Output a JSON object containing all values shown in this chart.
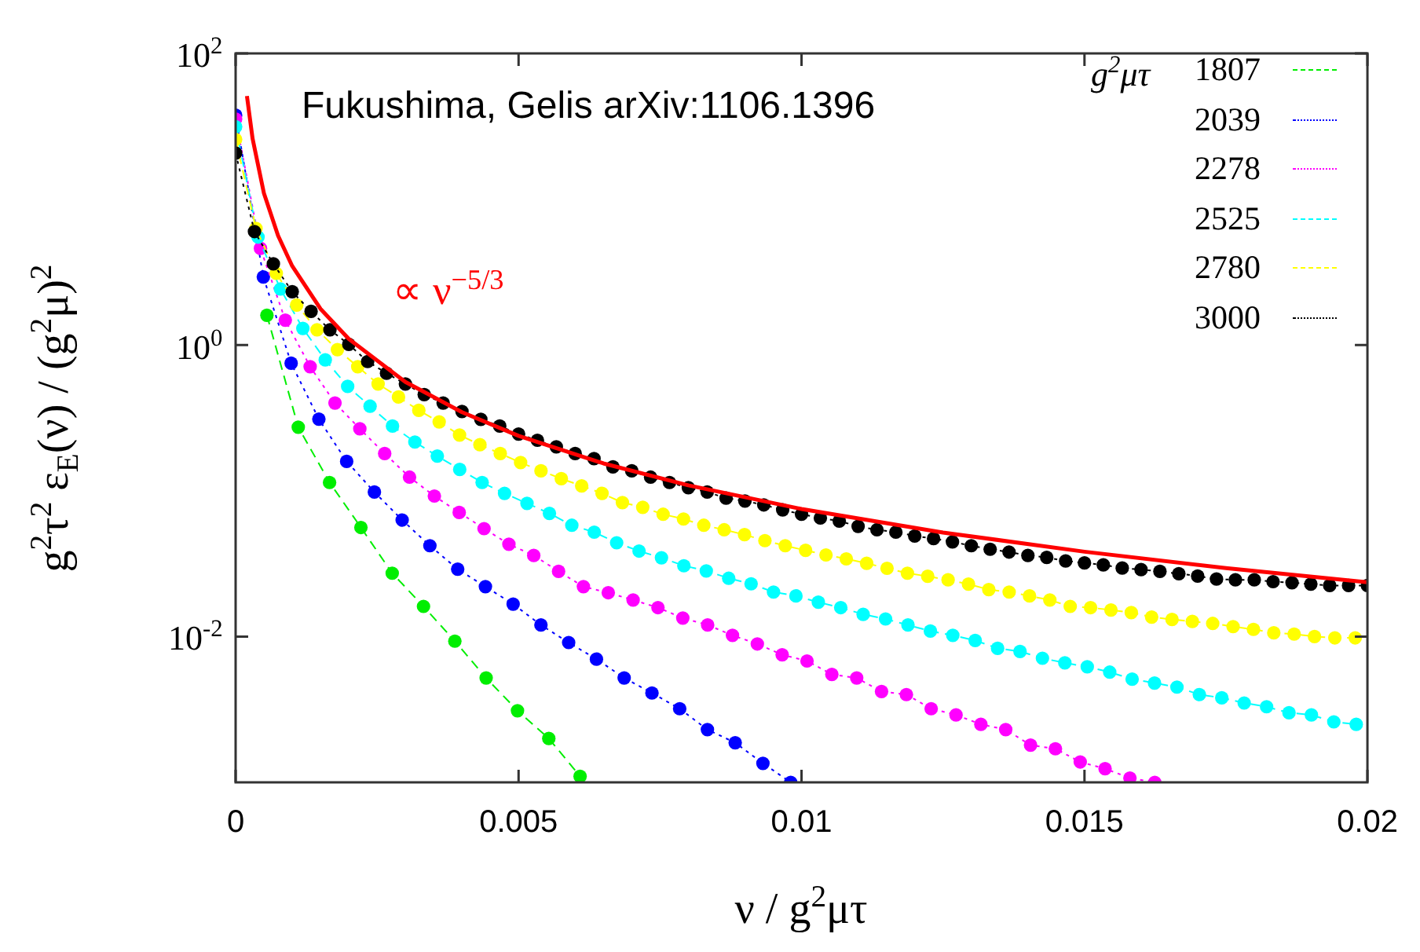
{
  "chart_data": {
    "type": "line",
    "title": "Fukushima, Gelis arXiv:1106.1396",
    "xlabel": "ν / g$^{2}$μτ",
    "ylabel": "g$^{2}$τ$^{2}$ ε$_{E}$(ν) / (g$^{2}$μ)$^{2}$",
    "legend_title": "g$^{2}$μτ",
    "legend": "top right",
    "grid": false,
    "log": "y",
    "marker": "circle",
    "xlim": [
      0,
      0.02
    ],
    "xticks": [
      0,
      0.005,
      0.01,
      0.015,
      0.02
    ],
    "ylim": [
      0.001,
      100
    ],
    "yticks": [
      {
        "value": 0.01,
        "label": "10$^{-2}$"
      },
      {
        "value": 1,
        "label": "10$^{0}$"
      },
      {
        "value": 100,
        "label": "10$^{2}$"
      }
    ],
    "annotations": [
      "∝ ν$^{−5/3}$"
    ],
    "series": [
      {
        "name": "1807",
        "color": "#00ee00",
        "line_style": "dashed",
        "x": [
          0.000553,
          0.001107,
          0.00166,
          0.002214,
          0.002767,
          0.00332,
          0.003874,
          0.004427,
          0.004981,
          0.005534,
          0.006087
        ],
        "values": [
          1.6,
          0.273,
          0.114,
          0.056,
          0.0272,
          0.0161,
          0.0093,
          0.0052,
          0.0031,
          0.002,
          0.0011
        ]
      },
      {
        "name": "2039",
        "color": "#0000ff",
        "line_style": "dotted",
        "x": [
          0,
          0.00049,
          0.000981,
          0.001471,
          0.001962,
          0.002452,
          0.002943,
          0.003433,
          0.003924,
          0.004414,
          0.004904,
          0.005395,
          0.005885,
          0.006376,
          0.006866,
          0.007357,
          0.007847,
          0.008337,
          0.008828,
          0.009318,
          0.009809
        ],
        "values": [
          37.7,
          2.93,
          0.75,
          0.31,
          0.159,
          0.098,
          0.063,
          0.042,
          0.029,
          0.022,
          0.0167,
          0.012,
          0.0091,
          0.007,
          0.0052,
          0.0041,
          0.0032,
          0.0023,
          0.00187,
          0.00135,
          0.001
        ]
      },
      {
        "name": "2278",
        "color": "#ff00ff",
        "line_style": "dotted",
        "x": [
          0,
          0.000439,
          0.000878,
          0.001317,
          0.001756,
          0.002195,
          0.002634,
          0.003073,
          0.003512,
          0.003951,
          0.00439,
          0.004829,
          0.005268,
          0.005707,
          0.006146,
          0.006585,
          0.007024,
          0.007463,
          0.007902,
          0.008341,
          0.00878,
          0.009219,
          0.009658,
          0.010097,
          0.010536,
          0.010975,
          0.011414,
          0.011853,
          0.012291,
          0.01273,
          0.013169,
          0.013608,
          0.014047,
          0.014486,
          0.014925,
          0.015364,
          0.015803,
          0.016242
        ],
        "values": [
          35.5,
          4.6,
          1.48,
          0.71,
          0.4,
          0.266,
          0.18,
          0.124,
          0.092,
          0.071,
          0.055,
          0.043,
          0.036,
          0.028,
          0.022,
          0.02,
          0.0178,
          0.0158,
          0.0134,
          0.012,
          0.0102,
          0.0089,
          0.0075,
          0.0068,
          0.0055,
          0.0052,
          0.0042,
          0.004,
          0.0032,
          0.0029,
          0.0025,
          0.0023,
          0.0018,
          0.0017,
          0.00138,
          0.00124,
          0.00107,
          0.001
        ]
      },
      {
        "name": "2525",
        "color": "#00ffff",
        "line_style": "dashed",
        "x": [
          0,
          0.000396,
          0.000792,
          0.001188,
          0.001584,
          0.00198,
          0.002376,
          0.002772,
          0.003168,
          0.003564,
          0.00396,
          0.004356,
          0.004752,
          0.005149,
          0.005545,
          0.005941,
          0.006337,
          0.006733,
          0.007129,
          0.007525,
          0.007921,
          0.008317,
          0.008713,
          0.009109,
          0.009505,
          0.009901,
          0.010297,
          0.010693,
          0.011089,
          0.011485,
          0.011881,
          0.012277,
          0.012673,
          0.013069,
          0.013465,
          0.013861,
          0.014257,
          0.014653,
          0.015049,
          0.015446,
          0.015842,
          0.016238,
          0.016634,
          0.01703,
          0.017426,
          0.017822,
          0.018218,
          0.018614,
          0.01901,
          0.019406,
          0.019802
        ],
        "values": [
          31.4,
          5.5,
          2.42,
          1.3,
          0.79,
          0.52,
          0.38,
          0.278,
          0.216,
          0.173,
          0.14,
          0.114,
          0.096,
          0.082,
          0.07,
          0.058,
          0.052,
          0.044,
          0.0386,
          0.0347,
          0.0306,
          0.0282,
          0.0251,
          0.023,
          0.0202,
          0.019,
          0.0172,
          0.0158,
          0.0142,
          0.0132,
          0.012,
          0.0109,
          0.0102,
          0.0094,
          0.0083,
          0.0079,
          0.0071,
          0.0066,
          0.0062,
          0.0057,
          0.0051,
          0.0048,
          0.0045,
          0.004,
          0.0038,
          0.0035,
          0.0033,
          0.003,
          0.0029,
          0.0026,
          0.0025
        ]
      },
      {
        "name": "2780",
        "color": "#ffff00",
        "line_style": "dashed",
        "x": [
          0,
          0.00036,
          0.000719,
          0.001079,
          0.001439,
          0.001799,
          0.002158,
          0.002518,
          0.002878,
          0.003237,
          0.003597,
          0.003957,
          0.004317,
          0.004676,
          0.005036,
          0.005396,
          0.005755,
          0.006115,
          0.006475,
          0.006835,
          0.007194,
          0.007554,
          0.007914,
          0.008273,
          0.008633,
          0.008993,
          0.009353,
          0.009712,
          0.010072,
          0.010432,
          0.010791,
          0.011151,
          0.011511,
          0.011871,
          0.01223,
          0.01259,
          0.01295,
          0.013309,
          0.013669,
          0.014029,
          0.014388,
          0.014748,
          0.015108,
          0.015468,
          0.015827,
          0.016187,
          0.016547,
          0.016906,
          0.017266,
          0.017626,
          0.017986,
          0.018345,
          0.018705,
          0.019065,
          0.019424,
          0.019784
        ],
        "values": [
          25.7,
          6.3,
          3.1,
          1.88,
          1.27,
          0.93,
          0.71,
          0.54,
          0.44,
          0.356,
          0.297,
          0.241,
          0.207,
          0.18,
          0.156,
          0.137,
          0.121,
          0.108,
          0.096,
          0.083,
          0.077,
          0.069,
          0.064,
          0.058,
          0.054,
          0.05,
          0.0455,
          0.042,
          0.039,
          0.0363,
          0.0341,
          0.0318,
          0.0294,
          0.0272,
          0.0259,
          0.0245,
          0.0229,
          0.021,
          0.0202,
          0.019,
          0.0178,
          0.0161,
          0.0158,
          0.0152,
          0.0146,
          0.0136,
          0.0131,
          0.0127,
          0.0123,
          0.0117,
          0.0112,
          0.0106,
          0.0104,
          0.01,
          0.0098,
          0.0098
        ]
      },
      {
        "name": "3000",
        "color": "#000000",
        "line_style": "dotted",
        "x": [
          0,
          0.000333,
          0.000667,
          0.001,
          0.001333,
          0.001667,
          0.002,
          0.002333,
          0.002667,
          0.003,
          0.003333,
          0.003667,
          0.004,
          0.004333,
          0.004667,
          0.005,
          0.005333,
          0.005667,
          0.006,
          0.006333,
          0.006667,
          0.007,
          0.007333,
          0.007667,
          0.008,
          0.008333,
          0.008667,
          0.009,
          0.009333,
          0.009667,
          0.01,
          0.010333,
          0.010667,
          0.011,
          0.011333,
          0.011667,
          0.012,
          0.012333,
          0.012667,
          0.013,
          0.013333,
          0.013667,
          0.014,
          0.014333,
          0.014667,
          0.015,
          0.015333,
          0.015667,
          0.016,
          0.016333,
          0.016667,
          0.017,
          0.017333,
          0.017667,
          0.018,
          0.018333,
          0.018667,
          0.019,
          0.019333,
          0.019667,
          0.02
        ],
        "values": [
          20.7,
          6,
          3.6,
          2.32,
          1.7,
          1.27,
          1.01,
          0.77,
          0.64,
          0.54,
          0.457,
          0.4,
          0.35,
          0.309,
          0.278,
          0.245,
          0.222,
          0.2,
          0.18,
          0.166,
          0.146,
          0.137,
          0.124,
          0.114,
          0.105,
          0.098,
          0.089,
          0.085,
          0.08,
          0.074,
          0.069,
          0.065,
          0.062,
          0.057,
          0.054,
          0.052,
          0.049,
          0.047,
          0.0446,
          0.042,
          0.0397,
          0.038,
          0.036,
          0.0349,
          0.033,
          0.032,
          0.031,
          0.0295,
          0.0288,
          0.028,
          0.027,
          0.026,
          0.0248,
          0.0245,
          0.0245,
          0.0238,
          0.0234,
          0.0229,
          0.0224,
          0.0224,
          0.0224
        ]
      },
      {
        "type": "line",
        "color": "#ff0000",
        "marker": "none",
        "line_style": "solid",
        "x": [
          0.0002,
          0.0003,
          0.0005,
          0.00075,
          0.001,
          0.0015,
          0.002,
          0.003,
          0.004,
          0.005,
          0.0065,
          0.008,
          0.01,
          0.0125,
          0.015,
          0.0175,
          0.02
        ],
        "values": [
          51,
          26,
          11,
          5.62,
          3.48,
          1.77,
          1.1,
          0.558,
          0.346,
          0.238,
          0.154,
          0.109,
          0.075,
          0.0517,
          0.0382,
          0.0295,
          0.0236
        ]
      }
    ]
  }
}
